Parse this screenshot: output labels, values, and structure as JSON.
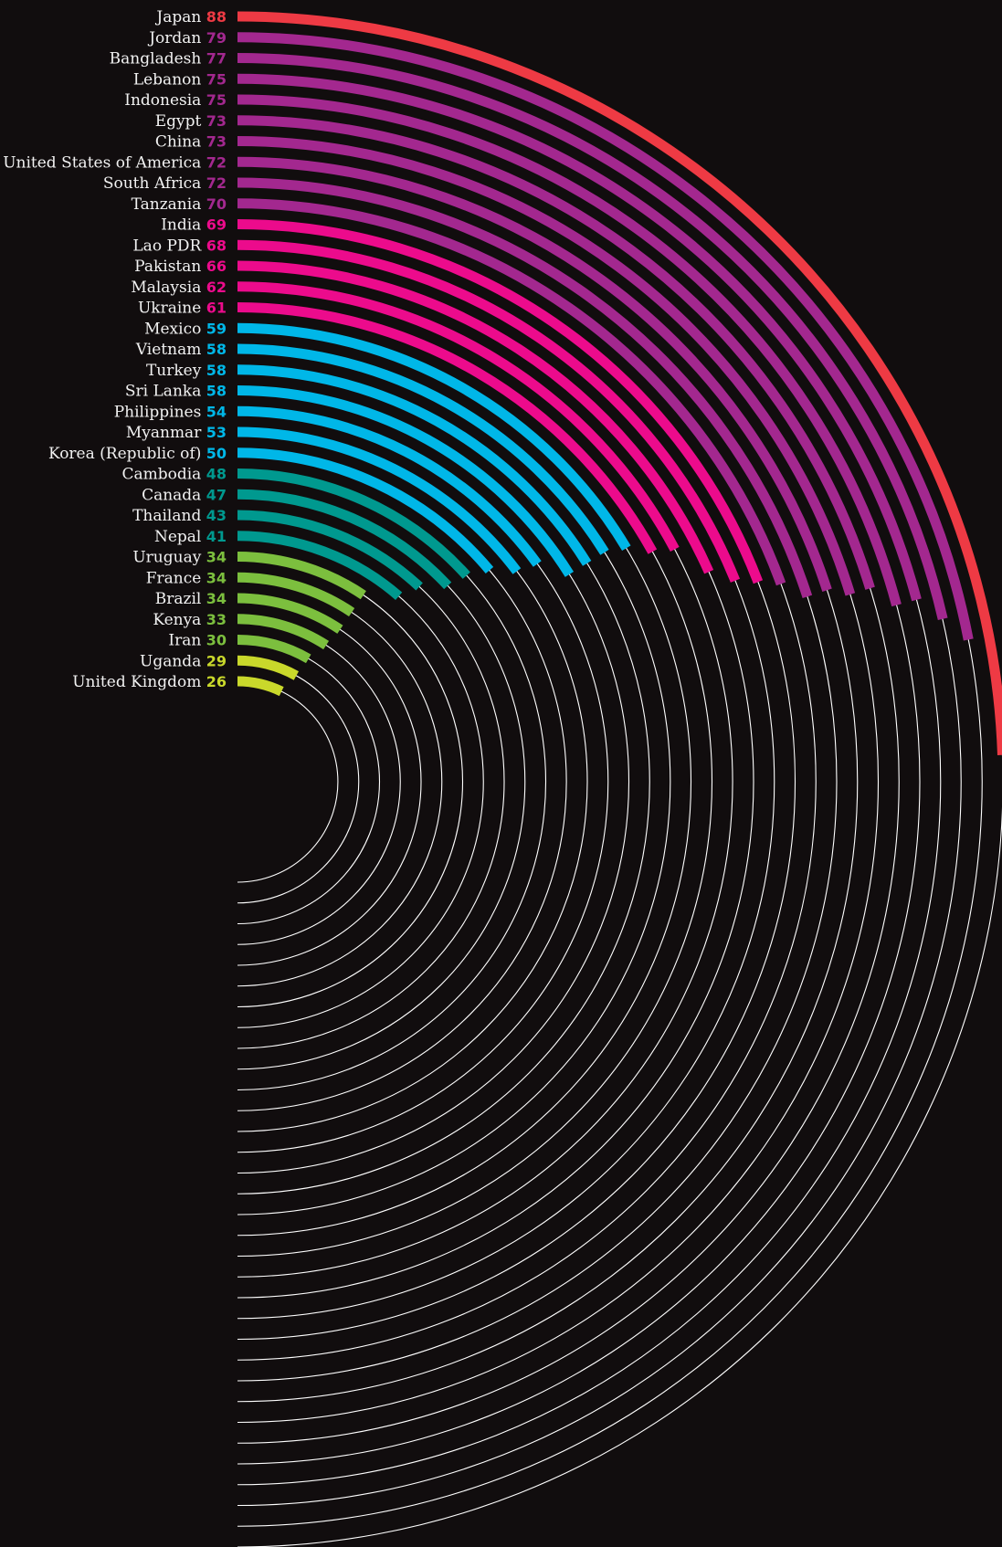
{
  "chart_data": {
    "type": "radial-bar",
    "title": "",
    "max_value": 180,
    "colors": {
      "background": "#110d0e",
      "track": "#ffffff",
      "bands": [
        {
          "min": 80,
          "color": "#ee3a44"
        },
        {
          "min": 70,
          "color": "#a3288f"
        },
        {
          "min": 60,
          "color": "#ec0b8c"
        },
        {
          "min": 50,
          "color": "#00b7e8"
        },
        {
          "min": 40,
          "color": "#00998f"
        },
        {
          "min": 30,
          "color": "#7cbf3e"
        },
        {
          "min": 0,
          "color": "#c9d82b"
        }
      ]
    },
    "categories": [
      "Japan",
      "Jordan",
      "Bangladesh",
      "Lebanon",
      "Indonesia",
      "Egypt",
      "China",
      "United States of America",
      "South Africa",
      "Tanzania",
      "India",
      "Lao PDR",
      "Pakistan",
      "Malaysia",
      "Ukraine",
      "Mexico",
      "Vietnam",
      "Turkey",
      "Sri Lanka",
      "Philippines",
      "Myanmar",
      "Korea (Republic of)",
      "Cambodia",
      "Canada",
      "Thailand",
      "Nepal",
      "Uruguay",
      "France",
      "Brazil",
      "Kenya",
      "Iran",
      "Uganda",
      "United Kingdom"
    ],
    "values": [
      88,
      79,
      77,
      75,
      75,
      73,
      73,
      72,
      72,
      70,
      69,
      68,
      66,
      62,
      61,
      59,
      58,
      58,
      58,
      54,
      53,
      50,
      48,
      47,
      43,
      41,
      34,
      34,
      34,
      33,
      30,
      29,
      26
    ],
    "value_labels": [
      "88",
      "79",
      "77",
      "75",
      "75",
      "73",
      "73",
      "72",
      "72",
      "70",
      "69",
      "68",
      "66",
      "62",
      "61",
      "59",
      "58",
      "58",
      "58",
      "54",
      "53",
      "50",
      "48",
      "47",
      "43",
      "41",
      "34",
      "34",
      "34",
      "33",
      "30",
      "29",
      "26"
    ]
  }
}
